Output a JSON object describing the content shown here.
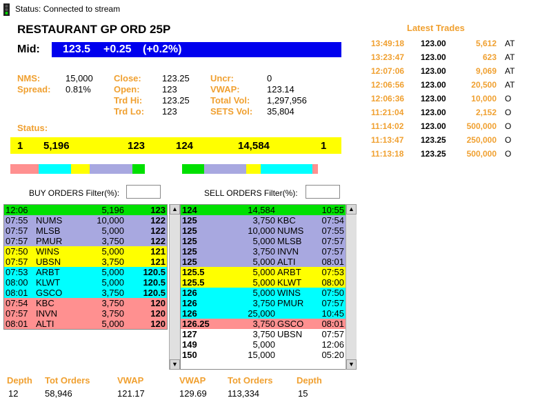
{
  "status": {
    "text": "Status: Connected to stream"
  },
  "title": "RESTAURANT GP ORD 25P",
  "mid": {
    "label": "Mid:",
    "price": "123.5",
    "change": "+0.25",
    "pct": "(+0.2%)"
  },
  "stats": {
    "nms_label": "NMS:",
    "nms": "15,000",
    "spread_label": "Spread:",
    "spread": "0.81%",
    "close_label": "Close:",
    "close": "123.25",
    "open_label": "Open:",
    "open": "123",
    "trdhi_label": "Trd Hi:",
    "trdhi": "123.25",
    "trdlo_label": "Trd Lo:",
    "trdlo": "123",
    "uncr_label": "Uncr:",
    "uncr": "0",
    "vwap_label": "VWAP:",
    "vwap": "123.14",
    "totvol_label": "Total Vol:",
    "totvol": "1,297,956",
    "setsvol_label": "SETS Vol:",
    "setsvol": "35,804",
    "status_label": "Status:"
  },
  "touch": {
    "buy_count": "1",
    "buy_qty": "5,196",
    "bid": "123",
    "ask": "124",
    "sell_qty": "14,584",
    "sell_count": "1"
  },
  "colors": {
    "green": "#00e000",
    "lavender": "#a8a8e0",
    "yellow": "#ffff00",
    "cyan": "#00ffff",
    "salmon": "#ff9090",
    "orange": "#f0a030",
    "blue": "#0000ee"
  },
  "depth_bars": {
    "buy": [
      {
        "color": "#ff9090",
        "pct": 0.21
      },
      {
        "color": "#00ffff",
        "pct": 0.24
      },
      {
        "color": "#ffff00",
        "pct": 0.14
      },
      {
        "color": "#a8a8e0",
        "pct": 0.32
      },
      {
        "color": "#00e000",
        "pct": 0.09
      }
    ],
    "sell": [
      {
        "color": "#00e000",
        "pct": 0.16
      },
      {
        "color": "#a8a8e0",
        "pct": 0.31
      },
      {
        "color": "#ffff00",
        "pct": 0.11
      },
      {
        "color": "#00ffff",
        "pct": 0.38
      },
      {
        "color": "#ff9090",
        "pct": 0.04
      }
    ]
  },
  "buy_orders": {
    "label": "BUY ORDERS  Filter(%):",
    "rows": [
      {
        "time": "12:06",
        "broker": "",
        "qty": "5,196",
        "price": "123",
        "color": "#00e000"
      },
      {
        "time": "07:55",
        "broker": "NUMS",
        "qty": "10,000",
        "price": "122",
        "color": "#a8a8e0"
      },
      {
        "time": "07:57",
        "broker": "MLSB",
        "qty": "5,000",
        "price": "122",
        "color": "#a8a8e0"
      },
      {
        "time": "07:57",
        "broker": "PMUR",
        "qty": "3,750",
        "price": "122",
        "color": "#a8a8e0"
      },
      {
        "time": "07:50",
        "broker": "WINS",
        "qty": "5,000",
        "price": "121",
        "color": "#ffff00"
      },
      {
        "time": "07:57",
        "broker": "UBSN",
        "qty": "3,750",
        "price": "121",
        "color": "#ffff00"
      },
      {
        "time": "07:53",
        "broker": "ARBT",
        "qty": "5,000",
        "price": "120.5",
        "color": "#00ffff"
      },
      {
        "time": "08:00",
        "broker": "KLWT",
        "qty": "5,000",
        "price": "120.5",
        "color": "#00ffff"
      },
      {
        "time": "08:01",
        "broker": "GSCO",
        "qty": "3,750",
        "price": "120.5",
        "color": "#00ffff"
      },
      {
        "time": "07:54",
        "broker": "KBC",
        "qty": "3,750",
        "price": "120",
        "color": "#ff9090"
      },
      {
        "time": "07:57",
        "broker": "INVN",
        "qty": "3,750",
        "price": "120",
        "color": "#ff9090"
      },
      {
        "time": "08:01",
        "broker": "ALTI",
        "qty": "5,000",
        "price": "120",
        "color": "#ff9090"
      }
    ]
  },
  "sell_orders": {
    "label": "SELL ORDERS  Filter(%):",
    "rows": [
      {
        "price": "124",
        "qty": "14,584",
        "broker": "",
        "time": "10:55",
        "color": "#00e000"
      },
      {
        "price": "125",
        "qty": "3,750",
        "broker": "KBC",
        "time": "07:54",
        "color": "#a8a8e0"
      },
      {
        "price": "125",
        "qty": "10,000",
        "broker": "NUMS",
        "time": "07:55",
        "color": "#a8a8e0"
      },
      {
        "price": "125",
        "qty": "5,000",
        "broker": "MLSB",
        "time": "07:57",
        "color": "#a8a8e0"
      },
      {
        "price": "125",
        "qty": "3,750",
        "broker": "INVN",
        "time": "07:57",
        "color": "#a8a8e0"
      },
      {
        "price": "125",
        "qty": "5,000",
        "broker": "ALTI",
        "time": "08:01",
        "color": "#a8a8e0"
      },
      {
        "price": "125.5",
        "qty": "5,000",
        "broker": "ARBT",
        "time": "07:53",
        "color": "#ffff00"
      },
      {
        "price": "125.5",
        "qty": "5,000",
        "broker": "KLWT",
        "time": "08:00",
        "color": "#ffff00"
      },
      {
        "price": "126",
        "qty": "5,000",
        "broker": "WINS",
        "time": "07:50",
        "color": "#00ffff"
      },
      {
        "price": "126",
        "qty": "3,750",
        "broker": "PMUR",
        "time": "07:57",
        "color": "#00ffff"
      },
      {
        "price": "126",
        "qty": "25,000",
        "broker": "",
        "time": "10:45",
        "color": "#00ffff"
      },
      {
        "price": "126.25",
        "qty": "3,750",
        "broker": "GSCO",
        "time": "08:01",
        "color": "#ff9090"
      },
      {
        "price": "127",
        "qty": "3,750",
        "broker": "UBSN",
        "time": "07:57",
        "color": "#ffffff"
      },
      {
        "price": "149",
        "qty": "5,000",
        "broker": "",
        "time": "12:06",
        "color": "#ffffff"
      },
      {
        "price": "150",
        "qty": "15,000",
        "broker": "",
        "time": "05:20",
        "color": "#ffffff"
      }
    ]
  },
  "footer": {
    "depth_label": "Depth",
    "tot_orders_label": "Tot Orders",
    "vwap_label": "VWAP",
    "buy_depth": "12",
    "buy_tot_orders": "58,946",
    "buy_vwap": "121.17",
    "sell_vwap": "129.69",
    "sell_tot_orders": "113,334",
    "sell_depth": "15"
  },
  "latest_trades": {
    "title": "Latest Trades",
    "rows": [
      {
        "time": "13:49:18",
        "price": "123.00",
        "qty": "5,612",
        "type": "AT"
      },
      {
        "time": "13:23:47",
        "price": "123.00",
        "qty": "623",
        "type": "AT"
      },
      {
        "time": "12:07:06",
        "price": "123.00",
        "qty": "9,069",
        "type": "AT"
      },
      {
        "time": "12:06:56",
        "price": "123.00",
        "qty": "20,500",
        "type": "AT"
      },
      {
        "time": "12:06:36",
        "price": "123.00",
        "qty": "10,000",
        "type": "O"
      },
      {
        "time": "11:21:04",
        "price": "123.00",
        "qty": "2,152",
        "type": "O"
      },
      {
        "time": "11:14:02",
        "price": "123.00",
        "qty": "500,000",
        "type": "O"
      },
      {
        "time": "11:13:47",
        "price": "123.25",
        "qty": "250,000",
        "type": "O"
      },
      {
        "time": "11:13:18",
        "price": "123.25",
        "qty": "500,000",
        "type": "O"
      }
    ]
  }
}
